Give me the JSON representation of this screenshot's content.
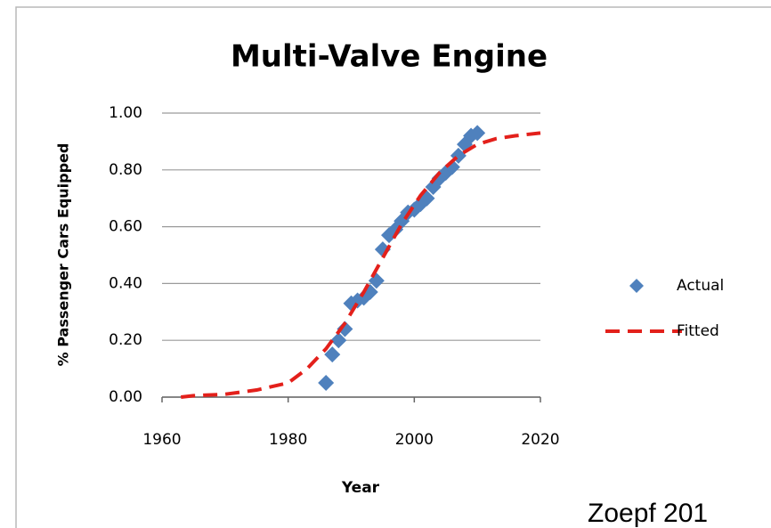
{
  "chart_data": {
    "type": "scatter",
    "title": "Multi-Valve Engine",
    "x_label": "Year",
    "y_label": "% Passenger Cars Equipped",
    "xlim": [
      1960,
      2020
    ],
    "xticks": [
      1960,
      1980,
      2000,
      2020
    ],
    "ylim": [
      0,
      1
    ],
    "yticks": [
      {
        "value": 0,
        "label": "0.00"
      },
      {
        "value": 0.2,
        "label": "0.20"
      },
      {
        "value": 0.4,
        "label": "0.40"
      },
      {
        "value": 0.6,
        "label": "0.60"
      },
      {
        "value": 0.8,
        "label": "0.80"
      },
      {
        "value": 1,
        "label": "1.00"
      }
    ],
    "grid": true,
    "legend": "right",
    "series": [
      {
        "name": "Actual",
        "color": "#4f81bd",
        "marker": "diamond",
        "x": [
          1986,
          1987,
          1988,
          1989,
          1990,
          1991,
          1992,
          1993,
          1994,
          1995,
          1996,
          1997,
          1998,
          1999,
          2000,
          2001,
          2002,
          2003,
          2004,
          2005,
          2006,
          2007,
          2008,
          2009,
          2010
        ],
        "values": [
          0.05,
          0.15,
          0.2,
          0.24,
          0.33,
          0.34,
          0.35,
          0.37,
          0.41,
          0.52,
          0.57,
          0.59,
          0.62,
          0.65,
          0.66,
          0.68,
          0.7,
          0.74,
          0.77,
          0.79,
          0.81,
          0.85,
          0.89,
          0.92,
          0.93
        ]
      },
      {
        "name": "Fitted",
        "color": "#e3201b",
        "line": "dashed",
        "x": [
          1963,
          1965,
          1970,
          1975,
          1980,
          1983,
          1986,
          1989,
          1992,
          1995,
          1998,
          2001,
          2004,
          2007,
          2010,
          2013,
          2016,
          2020
        ],
        "values": [
          0,
          0.005,
          0.01,
          0.025,
          0.05,
          0.1,
          0.17,
          0.26,
          0.37,
          0.49,
          0.61,
          0.71,
          0.79,
          0.85,
          0.89,
          0.91,
          0.92,
          0.93
        ]
      }
    ]
  },
  "footer": "Zoepf 201"
}
